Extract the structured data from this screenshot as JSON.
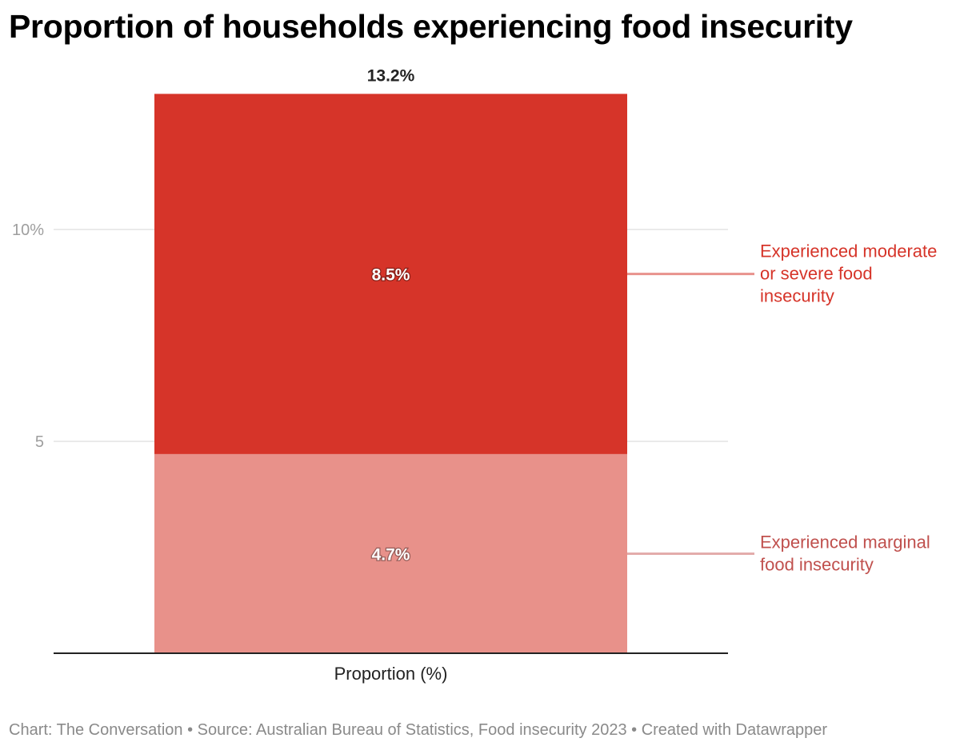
{
  "title": "Proportion of households experiencing food insecurity",
  "footer": "Chart: The Conversation • Source: Australian Bureau of Statistics, Food insecurity 2023 • Created with Datawrapper",
  "colors": {
    "moderate_severe": "#d63429",
    "marginal": "#e8918a",
    "moderate_severe_label": "#d63429",
    "marginal_label": "#c0504d"
  },
  "chart_data": {
    "type": "bar",
    "stacked": true,
    "categories": [
      "Proportion (%)"
    ],
    "series": [
      {
        "name": "Experienced marginal food insecurity",
        "values": [
          4.7
        ],
        "label": "4.7%"
      },
      {
        "name": "Experienced moderate or severe food insecurity",
        "values": [
          8.5
        ],
        "label": "8.5%"
      }
    ],
    "total_label": "13.2%",
    "yticks": [
      {
        "value": 5,
        "label": "5"
      },
      {
        "value": 10,
        "label": "10%"
      }
    ],
    "ylim": [
      0,
      13.2
    ],
    "grid": true,
    "legend": "direct labels, right"
  }
}
